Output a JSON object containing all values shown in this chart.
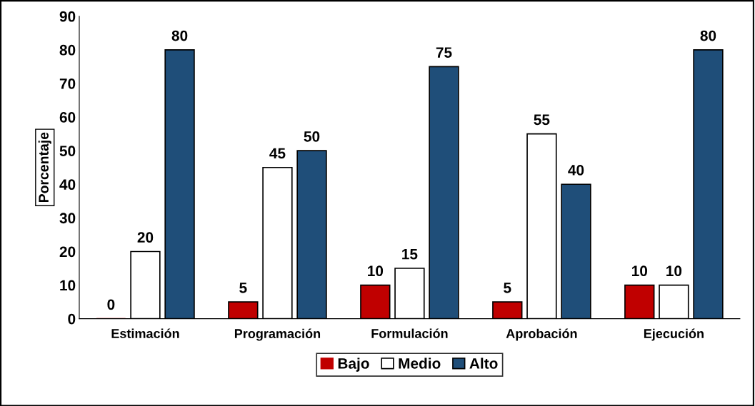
{
  "chart_data": {
    "type": "bar",
    "ylabel": "Porcentaje",
    "categories": [
      "Estimación",
      "Programación",
      "Formulación",
      "Aprobación",
      "Ejecución"
    ],
    "series": [
      {
        "name": "Bajo",
        "color": "#c00000",
        "values": [
          0,
          5,
          10,
          5,
          10
        ]
      },
      {
        "name": "Medio",
        "color": "#ffffff",
        "values": [
          20,
          45,
          15,
          55,
          10
        ]
      },
      {
        "name": "Alto",
        "color": "#1f4e79",
        "values": [
          80,
          50,
          75,
          40,
          80
        ]
      }
    ],
    "ylim": [
      0,
      90
    ],
    "yticks": [
      0,
      10,
      20,
      30,
      40,
      50,
      60,
      70,
      80,
      90
    ],
    "data_labels": true,
    "grid": false,
    "legend": "bottom"
  }
}
